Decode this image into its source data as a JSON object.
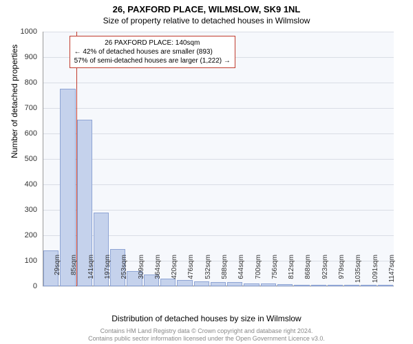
{
  "header": {
    "title": "26, PAXFORD PLACE, WILMSLOW, SK9 1NL",
    "subtitle": "Size of property relative to detached houses in Wilmslow"
  },
  "chart": {
    "type": "histogram",
    "y_axis_title": "Number of detached properties",
    "x_axis_title": "Distribution of detached houses by size in Wilmslow",
    "ylim": [
      0,
      1000
    ],
    "ytick_step": 100,
    "yticks": [
      0,
      100,
      200,
      300,
      400,
      500,
      600,
      700,
      800,
      900,
      1000
    ],
    "xticks": [
      "29sqm",
      "85sqm",
      "141sqm",
      "197sqm",
      "253sqm",
      "309sqm",
      "364sqm",
      "420sqm",
      "476sqm",
      "532sqm",
      "588sqm",
      "644sqm",
      "700sqm",
      "756sqm",
      "812sqm",
      "868sqm",
      "923sqm",
      "979sqm",
      "1035sqm",
      "1091sqm",
      "1147sqm"
    ],
    "values": [
      140,
      775,
      655,
      290,
      145,
      60,
      45,
      30,
      25,
      20,
      15,
      15,
      10,
      12,
      8,
      5,
      3,
      2,
      2,
      1,
      1
    ],
    "bar_color": "#c5d2ec",
    "bar_border_color": "#8ea4d4",
    "background_color": "#f6f8fc",
    "grid_color": "#d9dde5",
    "marker": {
      "position_index": 2,
      "color": "#c0392b"
    },
    "callout": {
      "line1": "26 PAXFORD PLACE: 140sqm",
      "line2": "← 42% of detached houses are smaller (893)",
      "line3": "57% of semi-detached houses are larger (1,222) →"
    }
  },
  "footer": {
    "line1": "Contains HM Land Registry data © Crown copyright and database right 2024.",
    "line2": "Contains public sector information licensed under the Open Government Licence v3.0."
  }
}
